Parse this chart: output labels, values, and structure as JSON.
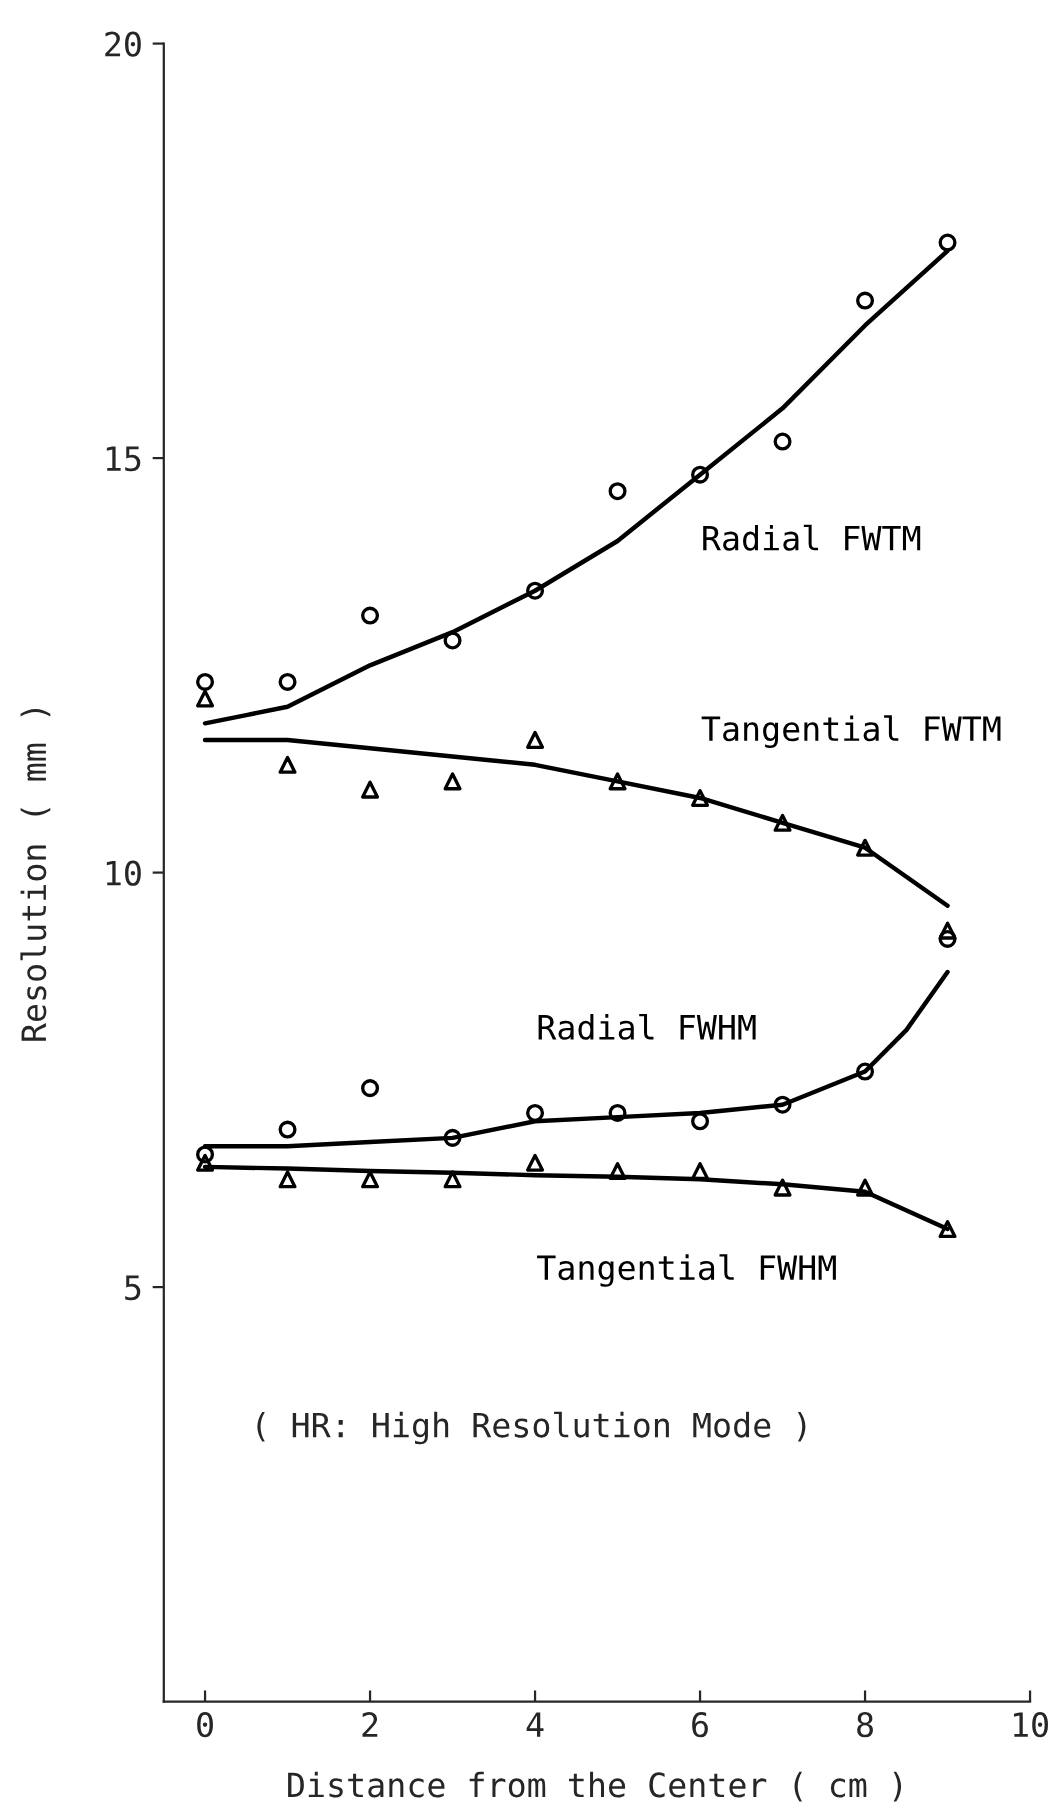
{
  "chart_data": {
    "type": "scatter",
    "xlabel": "Distance from the Center ( cm )",
    "ylabel": "Resolution ( mm )",
    "xlim": [
      -0.5,
      10
    ],
    "xticks": [
      0,
      2,
      4,
      6,
      8,
      10
    ],
    "ylim": [
      0,
      20
    ],
    "yticks": [
      5,
      10,
      15,
      20
    ],
    "grid": false,
    "legend": false,
    "series": [
      {
        "marker": "circle",
        "color": "#000000",
        "x": [
          0,
          1,
          2,
          3,
          4,
          5,
          6,
          7,
          8,
          9
        ],
        "values": [
          12.3,
          12.3,
          13.1,
          12.8,
          13.4,
          14.6,
          14.8,
          15.2,
          16.9,
          17.6
        ]
      },
      {
        "marker": "triangle",
        "color": "#000000",
        "x": [
          0,
          1,
          2,
          3,
          4,
          5,
          6,
          7,
          8,
          9
        ],
        "values": [
          12.1,
          11.3,
          11.0,
          11.1,
          11.6,
          11.1,
          10.9,
          10.6,
          10.3,
          9.3
        ]
      },
      {
        "marker": "circle",
        "color": "#000000",
        "x": [
          0,
          1,
          2,
          3,
          4,
          5,
          6,
          7,
          8,
          9
        ],
        "values": [
          6.6,
          6.9,
          7.4,
          6.8,
          7.1,
          7.1,
          7.0,
          7.2,
          7.6,
          9.2
        ]
      },
      {
        "marker": "triangle",
        "color": "#000000",
        "x": [
          0,
          1,
          2,
          3,
          4,
          5,
          6,
          7,
          8,
          9
        ],
        "values": [
          6.5,
          6.3,
          6.3,
          6.3,
          6.5,
          6.4,
          6.4,
          6.2,
          6.2,
          5.7
        ]
      },
      {
        "type": "line",
        "name": "Radial FWTM",
        "marker": "none",
        "line_style": "solid",
        "color": "#000000",
        "x": [
          0,
          0.5,
          1,
          2,
          3,
          4,
          5,
          6,
          7,
          8,
          9
        ],
        "values": [
          11.8,
          11.9,
          12.0,
          12.5,
          12.9,
          13.4,
          14.0,
          14.8,
          15.6,
          16.6,
          17.5
        ]
      },
      {
        "type": "line",
        "name": "Tangential FWTM",
        "marker": "none",
        "line_style": "solid",
        "color": "#000000",
        "x": [
          0,
          1,
          2,
          3,
          4,
          5,
          6,
          7,
          8,
          9
        ],
        "values": [
          11.6,
          11.6,
          11.5,
          11.4,
          11.3,
          11.1,
          10.9,
          10.6,
          10.3,
          9.6
        ]
      },
      {
        "type": "line",
        "name": "Radial FWHM",
        "marker": "none",
        "line_style": "solid",
        "color": "#000000",
        "x": [
          0,
          1,
          2,
          3,
          4,
          5,
          6,
          7,
          8,
          8.5,
          9
        ],
        "values": [
          6.7,
          6.7,
          6.75,
          6.8,
          7.0,
          7.05,
          7.1,
          7.2,
          7.6,
          8.1,
          8.8
        ]
      },
      {
        "type": "line",
        "name": "Tangential FWHM",
        "marker": "none",
        "line_style": "solid",
        "color": "#000000",
        "x": [
          0,
          1,
          2,
          3,
          4,
          5,
          6,
          7,
          8,
          9
        ],
        "values": [
          6.45,
          6.43,
          6.4,
          6.38,
          6.35,
          6.33,
          6.3,
          6.24,
          6.15,
          5.7
        ]
      }
    ],
    "annotations": [
      "( HR: High Resolution Mode )"
    ]
  }
}
